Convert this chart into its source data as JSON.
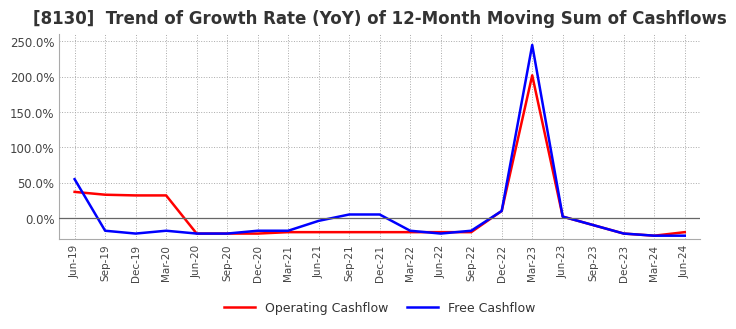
{
  "title": "[8130]  Trend of Growth Rate (YoY) of 12-Month Moving Sum of Cashflows",
  "title_fontsize": 12,
  "ylim": [
    -0.3,
    2.6
  ],
  "yticks": [
    0.0,
    0.5,
    1.0,
    1.5,
    2.0,
    2.5
  ],
  "ytick_labels": [
    "0.0%",
    "50.0%",
    "100.0%",
    "150.0%",
    "200.0%",
    "250.0%"
  ],
  "x_labels": [
    "Jun-19",
    "Sep-19",
    "Dec-19",
    "Mar-20",
    "Jun-20",
    "Sep-20",
    "Dec-20",
    "Mar-21",
    "Jun-21",
    "Sep-21",
    "Dec-21",
    "Mar-22",
    "Jun-22",
    "Sep-22",
    "Dec-22",
    "Mar-23",
    "Jun-23",
    "Sep-23",
    "Dec-23",
    "Mar-24",
    "Jun-24"
  ],
  "operating_cashflow": [
    0.37,
    0.33,
    0.32,
    0.32,
    -0.22,
    -0.22,
    -0.22,
    -0.2,
    -0.2,
    -0.2,
    -0.2,
    -0.2,
    -0.2,
    -0.2,
    0.1,
    2.02,
    0.02,
    -0.1,
    -0.22,
    -0.25,
    -0.2
  ],
  "free_cashflow": [
    0.55,
    -0.18,
    -0.22,
    -0.18,
    -0.22,
    -0.22,
    -0.18,
    -0.18,
    -0.04,
    0.05,
    0.05,
    -0.18,
    -0.22,
    -0.18,
    0.1,
    2.45,
    0.02,
    -0.1,
    -0.22,
    -0.25,
    -0.25
  ],
  "operating_color": "#ff0000",
  "free_color": "#0000ff",
  "background_color": "#ffffff",
  "plot_bg_color": "#ffffff",
  "grid_color": "#aaaaaa",
  "legend_labels": [
    "Operating Cashflow",
    "Free Cashflow"
  ]
}
